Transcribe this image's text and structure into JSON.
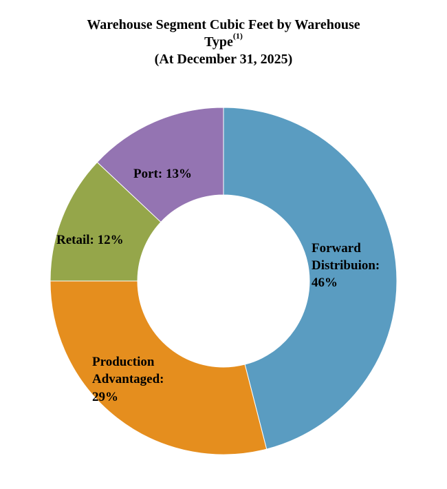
{
  "chart_data": {
    "type": "pie",
    "donut": true,
    "title": "Warehouse Segment Cubic Feet by Warehouse",
    "title_line2": "Type",
    "title_superscript": "(1)",
    "subtitle": "(At December 31, 2025)",
    "slices": [
      {
        "label": "Forward Distribuion",
        "value": 46,
        "display": "46%",
        "color": "#5a9cc1"
      },
      {
        "label": "Production Advantaged",
        "value": 29,
        "display": "29%",
        "color": "#e58e1e"
      },
      {
        "label": "Retail",
        "value": 12,
        "display": "12%",
        "color": "#95a64a"
      },
      {
        "label": "Port",
        "value": 13,
        "display": "13%",
        "color": "#9474b2"
      }
    ],
    "legend": "none"
  },
  "labels": {
    "forward": [
      "Forward",
      "Distribuion:",
      "46%"
    ],
    "production": [
      "Production",
      "Advantaged:",
      "29%"
    ],
    "retail": [
      "Retail: 12%"
    ],
    "port": [
      "Port: 13%"
    ]
  }
}
